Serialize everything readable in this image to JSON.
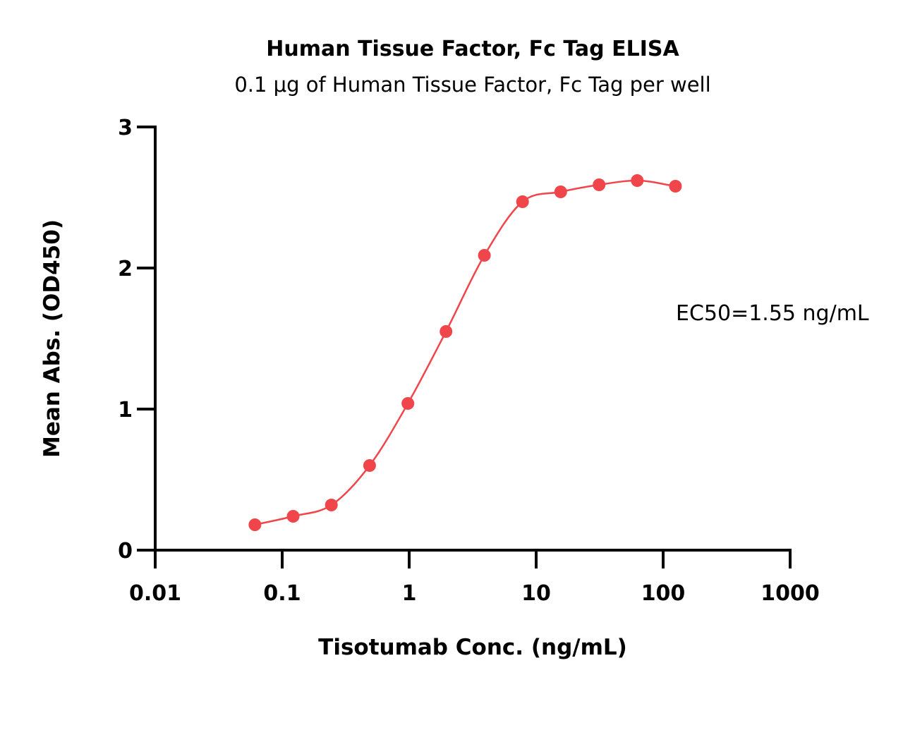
{
  "chart_data": {
    "type": "scatter",
    "title": "Human Tissue Factor, Fc Tag ELISA",
    "subtitle": "0.1 μg of Human Tissue Factor, Fc Tag per well",
    "xlabel": "Tisotumab Conc. (ng/mL)",
    "ylabel": "Mean Abs. (OD450)",
    "x_scale": "log",
    "xlim": [
      0.01,
      1000
    ],
    "ylim": [
      0,
      3
    ],
    "x_ticks": [
      "0.01",
      "0.1",
      "1",
      "10",
      "100",
      "1000"
    ],
    "x_tick_values": [
      0.01,
      0.1,
      1,
      10,
      100,
      1000
    ],
    "y_ticks": [
      "0",
      "1",
      "2",
      "3"
    ],
    "y_tick_values": [
      0,
      1,
      2,
      3
    ],
    "grid": false,
    "annotation": "EC50=1.55 ng/mL",
    "series": [
      {
        "x": [
          0.061,
          0.122,
          0.244,
          0.488,
          0.977,
          1.95,
          3.91,
          7.81,
          15.6,
          31.3,
          62.5,
          125
        ],
        "y": [
          0.18,
          0.24,
          0.32,
          0.6,
          1.04,
          1.55,
          2.09,
          2.47,
          2.54,
          2.59,
          2.62,
          2.58
        ],
        "fit_curve": true,
        "color": "#f0464b"
      }
    ]
  }
}
